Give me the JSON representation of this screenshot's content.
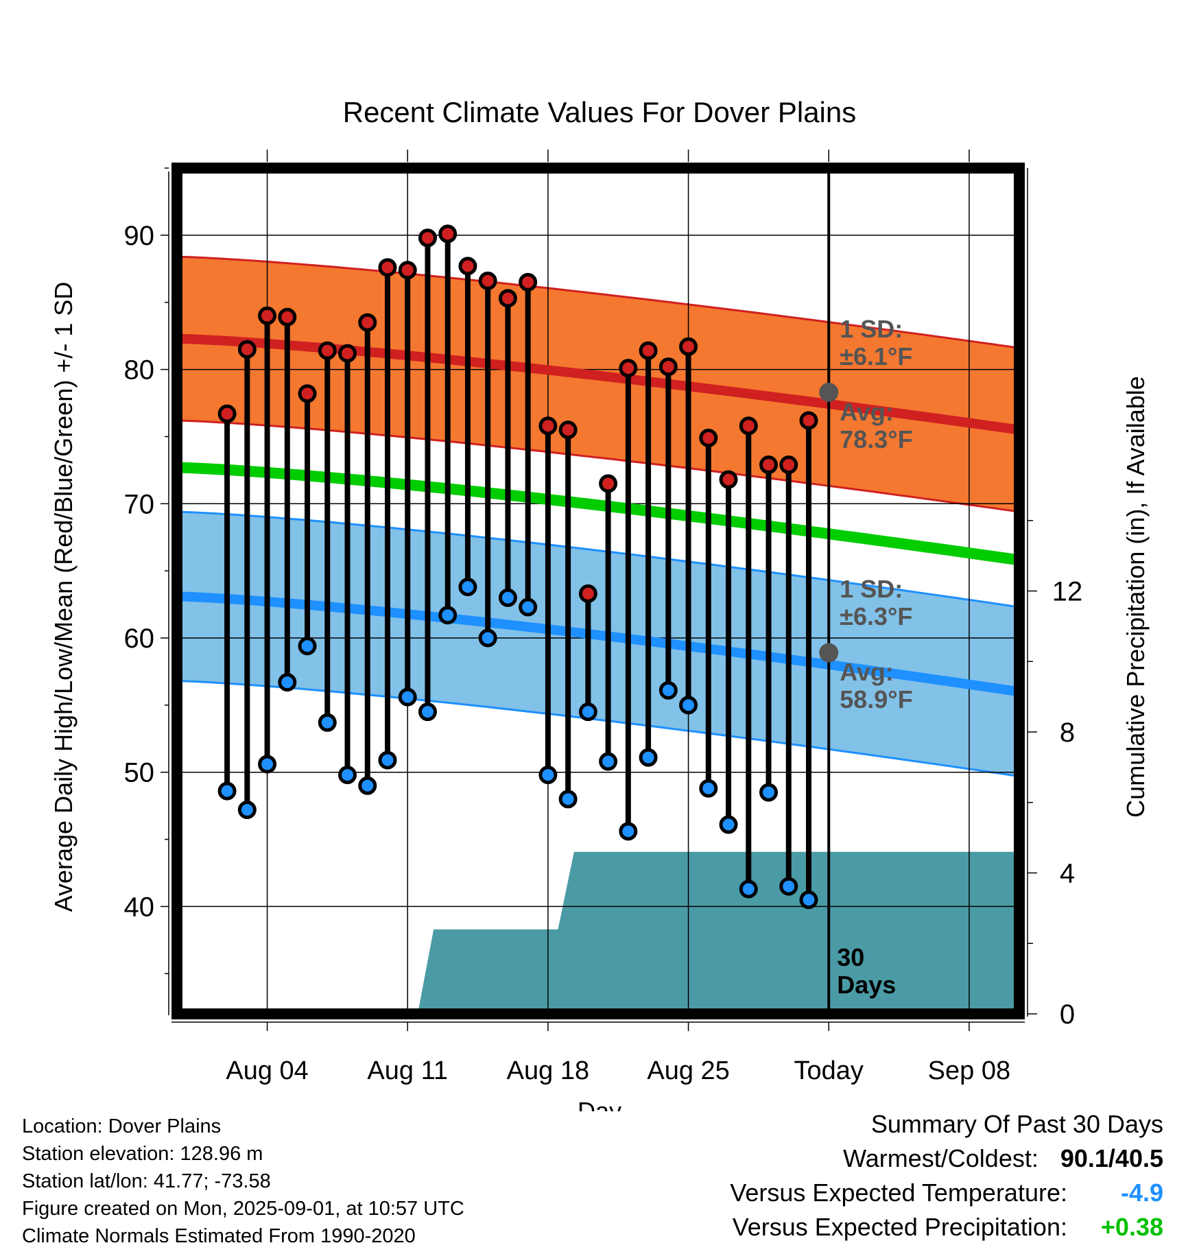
{
  "chart_data": {
    "type": "line",
    "title": "Recent Climate Values For Dover Plains",
    "xlabel": "Day",
    "ylabel": "Average Daily High/Low/Mean (Red/Blue/Green) +/- 1 SD",
    "y2label": "Cumulative Precipitation (in), If Available",
    "ylim": [
      32,
      95
    ],
    "y2lim": [
      0,
      24
    ],
    "yticks": [
      40,
      50,
      60,
      70,
      80,
      90
    ],
    "y2ticks": [
      0,
      4,
      8,
      12
    ],
    "xlim": [
      -1.5,
      40.5
    ],
    "xticks": [
      {
        "day": 3,
        "label": "Aug 04"
      },
      {
        "day": 10,
        "label": "Aug 11"
      },
      {
        "day": 17,
        "label": "Aug 18"
      },
      {
        "day": 24,
        "label": "Aug 25"
      },
      {
        "day": 31,
        "label": "Today"
      },
      {
        "day": 38,
        "label": "Sep 08"
      }
    ],
    "today_day": 31,
    "period_label": "30\nDays",
    "normals": {
      "high": {
        "avg_start": 82.3,
        "avg_end": 75.5,
        "sd": 6.1,
        "color": "#d02020",
        "band_color": "#f47830"
      },
      "low": {
        "avg_start": 63.1,
        "avg_end": 56.0,
        "sd": 6.3,
        "color": "#1e90ff",
        "band_color": "#82c1e8"
      },
      "mean": {
        "avg_start": 72.7,
        "avg_end": 65.8,
        "color": "#00cc00"
      }
    },
    "annotations": {
      "high_sd": "1 SD:\n±6.1°F",
      "high_avg": "Avg:\n78.3°F",
      "low_sd": "1 SD:\n±6.3°F",
      "low_avg": "Avg:\n58.9°F",
      "high_today": 78.3,
      "low_today": 58.9
    },
    "daily": {
      "day": [
        1,
        2,
        3,
        4,
        5,
        6,
        7,
        8,
        9,
        10,
        11,
        12,
        13,
        14,
        15,
        16,
        17,
        18,
        19,
        20,
        21,
        22,
        23,
        24,
        25,
        26,
        27,
        28,
        29,
        30
      ],
      "high": [
        76.7,
        81.5,
        84.0,
        83.9,
        78.2,
        81.4,
        81.2,
        83.5,
        87.6,
        87.4,
        89.8,
        90.1,
        87.7,
        86.6,
        85.3,
        86.5,
        75.8,
        75.5,
        63.3,
        71.5,
        80.1,
        81.4,
        80.2,
        81.7,
        74.9,
        71.8,
        75.8,
        72.9,
        72.9,
        76.2
      ],
      "low": [
        48.6,
        47.2,
        50.6,
        56.7,
        59.4,
        53.7,
        49.8,
        49.0,
        50.9,
        55.6,
        54.5,
        61.7,
        63.8,
        60.0,
        63.0,
        62.3,
        49.8,
        48.0,
        54.5,
        50.8,
        45.6,
        51.1,
        56.1,
        55.0,
        48.8,
        46.1,
        41.3,
        48.5,
        41.5,
        40.5
      ]
    },
    "precip": {
      "points": [
        [
          -1.5,
          0
        ],
        [
          10.5,
          0
        ],
        [
          11.3,
          2.4
        ],
        [
          17.5,
          2.4
        ],
        [
          18.3,
          4.6
        ],
        [
          40.5,
          4.6
        ]
      ],
      "color": "#4b9ba6"
    }
  },
  "info": [
    "Location: Dover Plains",
    "Station elevation: 128.96 m",
    "Station lat/lon: 41.77; -73.58",
    "Figure created on Mon, 2025-09-01, at 10:57 UTC",
    "Climate Normals Estimated From 1990-2020"
  ],
  "summary": {
    "heading": "Summary Of Past 30 Days",
    "warm_cold_label": "Warmest/Coldest:",
    "warm_cold_value": "90.1/40.5",
    "temp_label": "Versus Expected Temperature:",
    "temp_value": "-4.9",
    "temp_color": "#1e90ff",
    "precip_label": "Versus Expected Precipitation:",
    "precip_value": "+0.38",
    "precip_color": "#00c000"
  }
}
